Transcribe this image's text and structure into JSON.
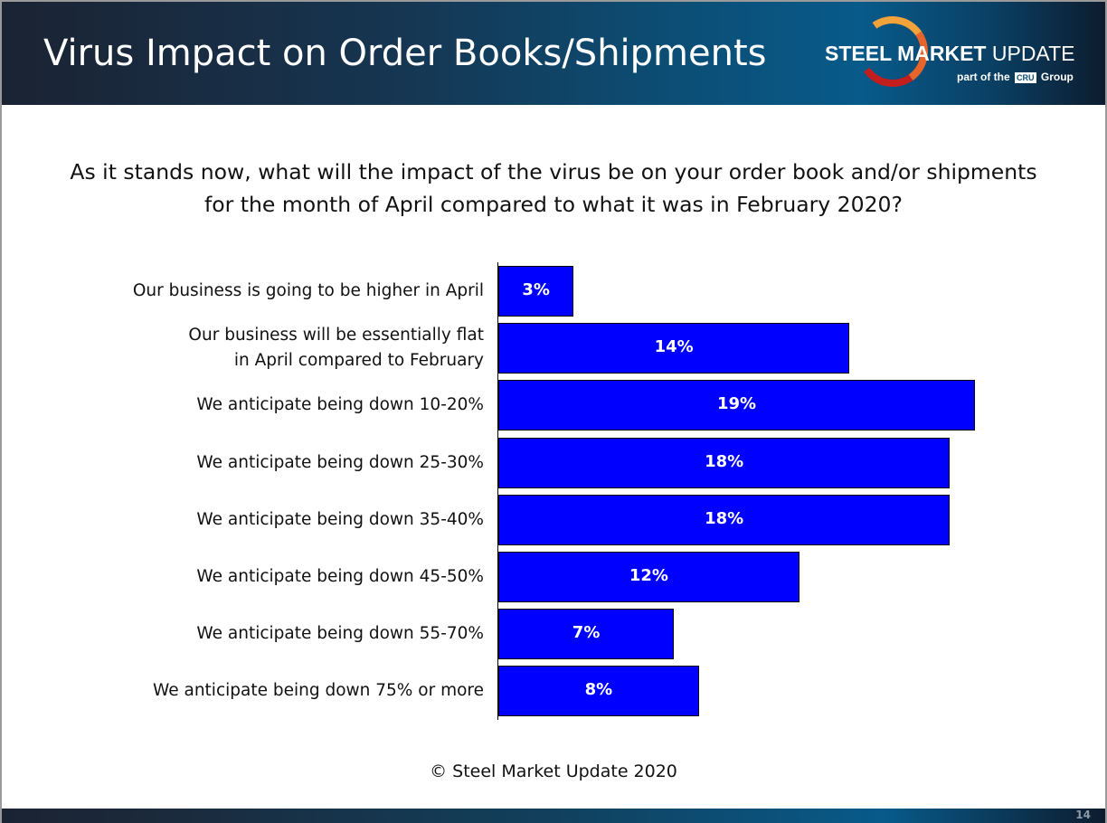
{
  "header": {
    "title": "Virus Impact on Order Books/Shipments",
    "logo_text_bold": "STEEL MARKET",
    "logo_text_light": "UPDATE",
    "logo_sub_prefix": "part of the",
    "logo_sub_badge": "CRU",
    "logo_sub_suffix": "Group"
  },
  "question": "As it stands now, what will the impact of the virus be on your order book and/or shipments for the month of April compared to what it was in February 2020?",
  "chart_data": {
    "type": "bar",
    "orientation": "horizontal",
    "categories": [
      "Our business is going to be higher in April",
      "Our business will be essentially flat\nin April compared to February",
      "We anticipate being down 10-20%",
      "We anticipate being down 25-30%",
      "We anticipate being down 35-40%",
      "We anticipate being down 45-50%",
      "We anticipate being down 55-70%",
      "We anticipate being down 75% or more"
    ],
    "values": [
      3,
      14,
      19,
      18,
      18,
      12,
      7,
      8
    ],
    "data_labels": [
      "3%",
      "14%",
      "19%",
      "18%",
      "18%",
      "12%",
      "7%",
      "8%"
    ],
    "xlim": [
      0,
      20
    ],
    "grid": false,
    "bar_color": "#0000ff"
  },
  "footer": "© Steel Market Update 2020",
  "page_number": "14"
}
